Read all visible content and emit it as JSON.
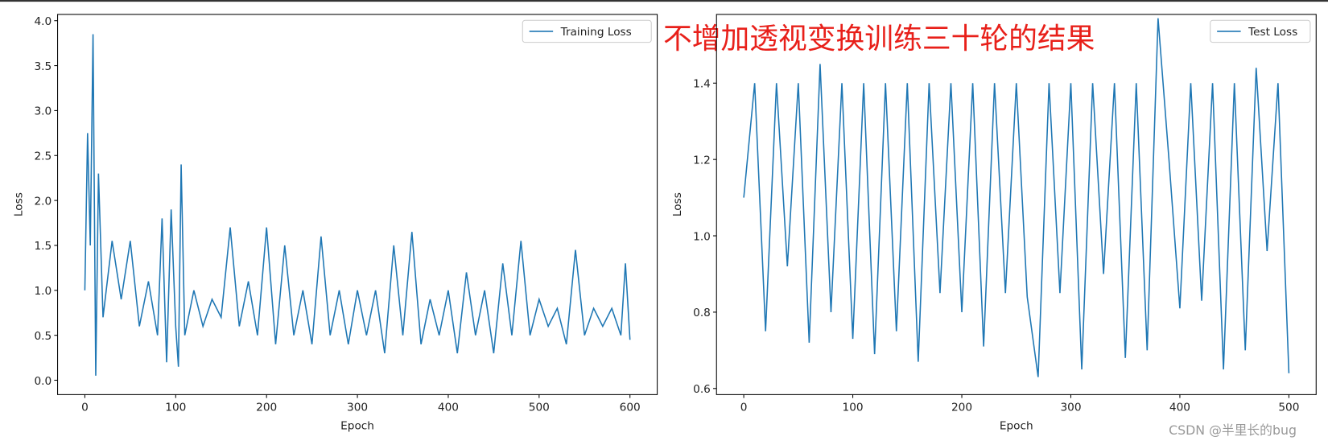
{
  "chart_data": [
    {
      "type": "line",
      "xlabel": "Epoch",
      "ylabel": "Loss",
      "legend": "upper right",
      "xlim": [
        -30,
        630
      ],
      "ylim": [
        -0.16,
        4.07
      ],
      "xticks": [
        0,
        100,
        200,
        300,
        400,
        500,
        600
      ],
      "yticks": [
        {
          "value": 0,
          "label": "0.0"
        },
        0.5,
        {
          "value": 1,
          "label": "1.0"
        },
        1.5,
        {
          "value": 2,
          "label": "2.0"
        },
        2.5,
        {
          "value": 3,
          "label": "3.0"
        },
        3.5,
        {
          "value": 4,
          "label": "4.0"
        }
      ],
      "x": [
        0,
        3,
        6,
        9,
        12,
        15,
        20,
        30,
        40,
        50,
        60,
        70,
        80,
        85,
        90,
        95,
        100,
        103,
        106,
        110,
        120,
        130,
        140,
        150,
        160,
        170,
        180,
        190,
        200,
        210,
        220,
        230,
        240,
        250,
        260,
        270,
        280,
        290,
        300,
        310,
        320,
        330,
        340,
        350,
        360,
        370,
        380,
        390,
        400,
        410,
        420,
        430,
        440,
        450,
        460,
        470,
        480,
        490,
        500,
        510,
        520,
        530,
        540,
        550,
        560,
        570,
        580,
        590,
        595,
        600
      ],
      "series": [
        {
          "name": "Training Loss",
          "color": "#1f77b4",
          "values": [
            1.0,
            2.75,
            1.5,
            3.85,
            0.05,
            2.3,
            0.7,
            1.55,
            0.9,
            1.55,
            0.6,
            1.1,
            0.5,
            1.8,
            0.2,
            1.9,
            0.6,
            0.15,
            2.4,
            0.5,
            1.0,
            0.6,
            0.9,
            0.7,
            1.7,
            0.6,
            1.1,
            0.5,
            1.7,
            0.4,
            1.5,
            0.5,
            1.0,
            0.4,
            1.6,
            0.5,
            1.0,
            0.4,
            1.0,
            0.5,
            1.0,
            0.3,
            1.5,
            0.5,
            1.65,
            0.4,
            0.9,
            0.5,
            1.0,
            0.3,
            1.2,
            0.5,
            1.0,
            0.3,
            1.3,
            0.5,
            1.55,
            0.5,
            0.9,
            0.6,
            0.8,
            0.4,
            1.45,
            0.5,
            0.8,
            0.6,
            0.8,
            0.5,
            1.3,
            0.45
          ]
        }
      ]
    },
    {
      "type": "line",
      "xlabel": "Epoch",
      "ylabel": "Loss",
      "legend": "upper right",
      "xlim": [
        -25,
        525
      ],
      "ylim": [
        0.584,
        1.58
      ],
      "xticks": [
        0,
        100,
        200,
        300,
        400,
        500
      ],
      "yticks": [
        0.6,
        0.8,
        {
          "value": 1,
          "label": "1.0"
        },
        1.2,
        1.4
      ],
      "x": [
        0,
        10,
        20,
        30,
        40,
        50,
        60,
        70,
        80,
        90,
        100,
        110,
        120,
        130,
        140,
        150,
        160,
        170,
        180,
        190,
        200,
        210,
        220,
        230,
        240,
        250,
        260,
        270,
        280,
        290,
        300,
        310,
        320,
        330,
        340,
        350,
        360,
        370,
        380,
        390,
        400,
        410,
        420,
        430,
        440,
        450,
        460,
        470,
        480,
        490,
        500
      ],
      "series": [
        {
          "name": "Test Loss",
          "color": "#1f77b4",
          "values": [
            1.1,
            1.4,
            0.75,
            1.4,
            0.92,
            1.4,
            0.72,
            1.45,
            0.8,
            1.4,
            0.73,
            1.4,
            0.69,
            1.4,
            0.75,
            1.4,
            0.67,
            1.4,
            0.85,
            1.4,
            0.8,
            1.4,
            0.71,
            1.4,
            0.85,
            1.4,
            0.84,
            0.63,
            1.4,
            0.85,
            1.4,
            0.65,
            1.4,
            0.9,
            1.4,
            0.68,
            1.4,
            0.7,
            1.57,
            1.2,
            0.81,
            1.4,
            0.83,
            1.4,
            0.65,
            1.4,
            0.7,
            1.44,
            0.96,
            1.4,
            0.64
          ]
        }
      ]
    }
  ],
  "annotation": "不增加透视变换训练三十轮的结果",
  "watermark": "CSDN @半里长的bug"
}
